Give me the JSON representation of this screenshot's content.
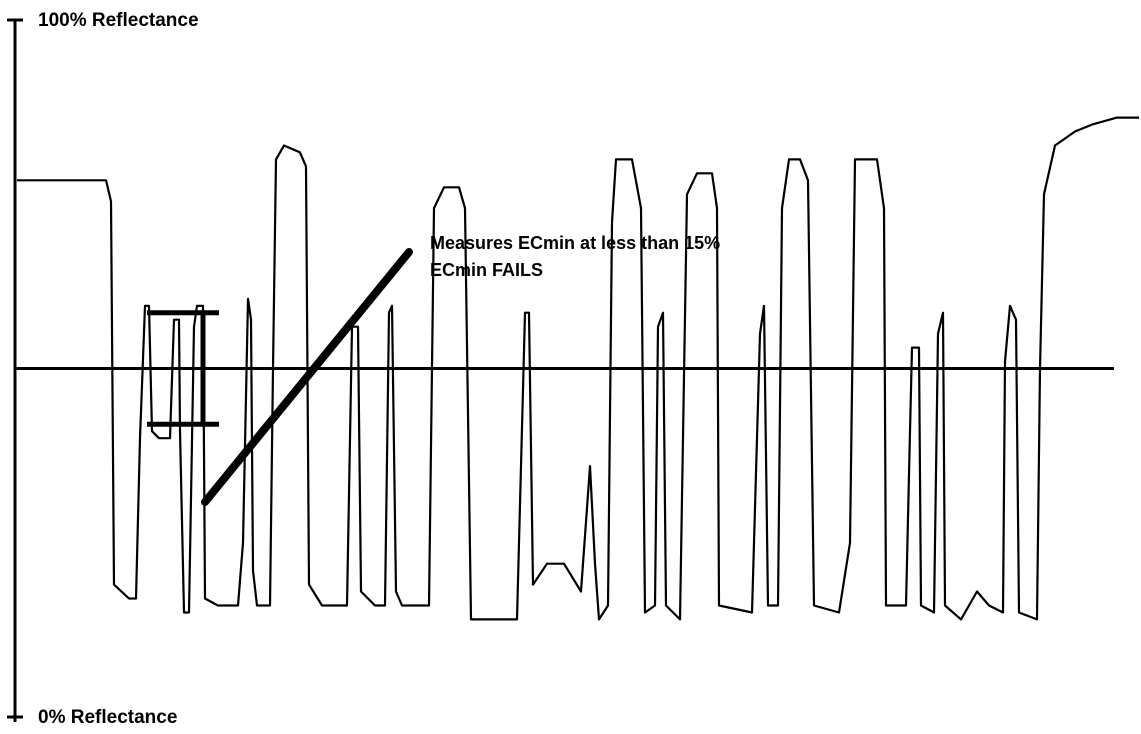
{
  "chart_data": {
    "type": "line",
    "title": "",
    "xlabel": "",
    "ylabel": "",
    "y_range": [
      0,
      100
    ],
    "grid": false,
    "legend": "none",
    "axis_labels": {
      "top": "100% Reflectance",
      "bottom": "0% Reflectance"
    },
    "threshold": {
      "value": 50
    },
    "annotation": {
      "lines": [
        "Measures ECmin at less than 15%",
        "ECmin FAILS"
      ],
      "bracket": {
        "low": 42,
        "high": 58
      }
    },
    "series": [
      {
        "points": [
          [
            0,
            77
          ],
          [
            89,
            77
          ],
          [
            94,
            74
          ],
          [
            97,
            19
          ],
          [
            112,
            17
          ],
          [
            119,
            17
          ],
          [
            123,
            40
          ],
          [
            128,
            59
          ],
          [
            132,
            59
          ],
          [
            135,
            41
          ],
          [
            142,
            40
          ],
          [
            153,
            40
          ],
          [
            157,
            57
          ],
          [
            162,
            57
          ],
          [
            163,
            41
          ],
          [
            167,
            15
          ],
          [
            172,
            15
          ],
          [
            177,
            56
          ],
          [
            180,
            59
          ],
          [
            186,
            59
          ],
          [
            188,
            17
          ],
          [
            201,
            16
          ],
          [
            221,
            16
          ],
          [
            226,
            25
          ],
          [
            231,
            60
          ],
          [
            234,
            57
          ],
          [
            236,
            21
          ],
          [
            240,
            16
          ],
          [
            253,
            16
          ],
          [
            256,
            50
          ],
          [
            259,
            80
          ],
          [
            267,
            82
          ],
          [
            283,
            81
          ],
          [
            289,
            79
          ],
          [
            292,
            19
          ],
          [
            305,
            16
          ],
          [
            330,
            16
          ],
          [
            335,
            56
          ],
          [
            341,
            56
          ],
          [
            344,
            18
          ],
          [
            358,
            16
          ],
          [
            368,
            16
          ],
          [
            372,
            58
          ],
          [
            375,
            59
          ],
          [
            379,
            18
          ],
          [
            385,
            16
          ],
          [
            412,
            16
          ],
          [
            417,
            73
          ],
          [
            427,
            76
          ],
          [
            442,
            76
          ],
          [
            448,
            73
          ],
          [
            454,
            14
          ],
          [
            470,
            14
          ],
          [
            500,
            14
          ],
          [
            508,
            58
          ],
          [
            512,
            58
          ],
          [
            516,
            19
          ],
          [
            530,
            22
          ],
          [
            547,
            22
          ],
          [
            564,
            18
          ],
          [
            573,
            36
          ],
          [
            578,
            22
          ],
          [
            582,
            14
          ],
          [
            591,
            16
          ],
          [
            595,
            71
          ],
          [
            599,
            80
          ],
          [
            615,
            80
          ],
          [
            624,
            73
          ],
          [
            628,
            15
          ],
          [
            638,
            16
          ],
          [
            641,
            56
          ],
          [
            646,
            58
          ],
          [
            649,
            16
          ],
          [
            663,
            14
          ],
          [
            670,
            75
          ],
          [
            680,
            78
          ],
          [
            695,
            78
          ],
          [
            700,
            73
          ],
          [
            702,
            16
          ],
          [
            735,
            15
          ],
          [
            743,
            55
          ],
          [
            747,
            59
          ],
          [
            751,
            16
          ],
          [
            761,
            16
          ],
          [
            765,
            73
          ],
          [
            772,
            80
          ],
          [
            783,
            80
          ],
          [
            791,
            77
          ],
          [
            797,
            16
          ],
          [
            822,
            15
          ],
          [
            833,
            25
          ],
          [
            838,
            80
          ],
          [
            845,
            80
          ],
          [
            860,
            80
          ],
          [
            867,
            73
          ],
          [
            869,
            16
          ],
          [
            889,
            16
          ],
          [
            893,
            41
          ],
          [
            895,
            53
          ],
          [
            902,
            53
          ],
          [
            904,
            16
          ],
          [
            917,
            15
          ],
          [
            921,
            55
          ],
          [
            926,
            58
          ],
          [
            928,
            16
          ],
          [
            944,
            14
          ],
          [
            960,
            18
          ],
          [
            972,
            16
          ],
          [
            986,
            15
          ],
          [
            988,
            51
          ],
          [
            993,
            59
          ],
          [
            999,
            57
          ],
          [
            1002,
            15
          ],
          [
            1020,
            14
          ],
          [
            1023,
            50
          ],
          [
            1027,
            75
          ],
          [
            1038,
            82
          ],
          [
            1058,
            84
          ],
          [
            1075,
            85
          ],
          [
            1100,
            86
          ],
          [
            1122,
            86
          ]
        ]
      }
    ]
  }
}
